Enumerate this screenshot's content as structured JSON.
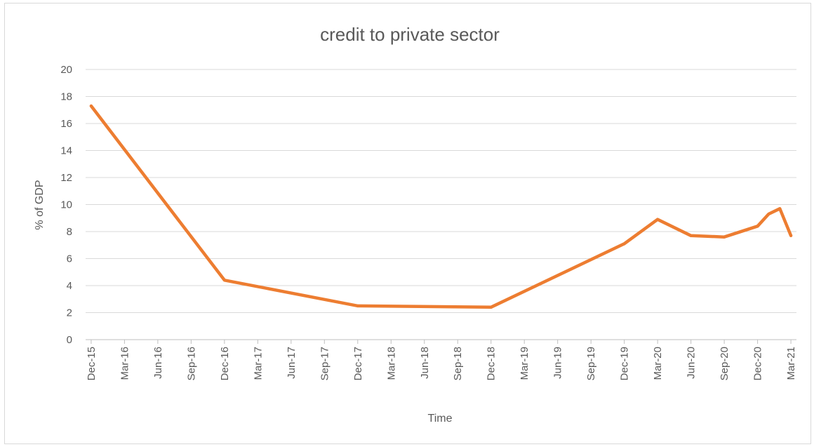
{
  "chart_data": {
    "type": "line",
    "title": "credit to private sector",
    "xlabel": "Time",
    "ylabel": "% of GDP",
    "ylim": [
      0,
      20
    ],
    "yticks": [
      0,
      2,
      4,
      6,
      8,
      10,
      12,
      14,
      16,
      18,
      20
    ],
    "grid": true,
    "legend": "none",
    "x_range": [
      "2015-12",
      "2021-03"
    ],
    "x_tick_labels": [
      {
        "date": "2015-12",
        "label": "Dec-15"
      },
      {
        "date": "2016-03",
        "label": "Mar-16"
      },
      {
        "date": "2016-06",
        "label": "Jun-16"
      },
      {
        "date": "2016-09",
        "label": "Sep-16"
      },
      {
        "date": "2016-12",
        "label": "Dec-16"
      },
      {
        "date": "2017-03",
        "label": "Mar-17"
      },
      {
        "date": "2017-06",
        "label": "Jun-17"
      },
      {
        "date": "2017-09",
        "label": "Sep-17"
      },
      {
        "date": "2017-12",
        "label": "Dec-17"
      },
      {
        "date": "2018-03",
        "label": "Mar-18"
      },
      {
        "date": "2018-06",
        "label": "Jun-18"
      },
      {
        "date": "2018-09",
        "label": "Sep-18"
      },
      {
        "date": "2018-12",
        "label": "Dec-18"
      },
      {
        "date": "2019-03",
        "label": "Mar-19"
      },
      {
        "date": "2019-06",
        "label": "Jun-19"
      },
      {
        "date": "2019-09",
        "label": "Sep-19"
      },
      {
        "date": "2019-12",
        "label": "Dec-19"
      },
      {
        "date": "2020-03",
        "label": "Mar-20"
      },
      {
        "date": "2020-06",
        "label": "Jun-20"
      },
      {
        "date": "2020-09",
        "label": "Sep-20"
      },
      {
        "date": "2020-12",
        "label": "Dec-20"
      },
      {
        "date": "2021-03",
        "label": "Mar-21"
      }
    ],
    "series": [
      {
        "color": "#ED7D31",
        "points": [
          {
            "x": "2015-12",
            "y": 17.3
          },
          {
            "x": "2016-12",
            "y": 4.4
          },
          {
            "x": "2017-12",
            "y": 2.5
          },
          {
            "x": "2018-12",
            "y": 2.4
          },
          {
            "x": "2019-12",
            "y": 7.1
          },
          {
            "x": "2020-03",
            "y": 8.9
          },
          {
            "x": "2020-06",
            "y": 7.7
          },
          {
            "x": "2020-09",
            "y": 7.6
          },
          {
            "x": "2020-12",
            "y": 8.4
          },
          {
            "x": "2021-01",
            "y": 9.3
          },
          {
            "x": "2021-02",
            "y": 9.7
          },
          {
            "x": "2021-03",
            "y": 7.7
          }
        ]
      }
    ]
  }
}
